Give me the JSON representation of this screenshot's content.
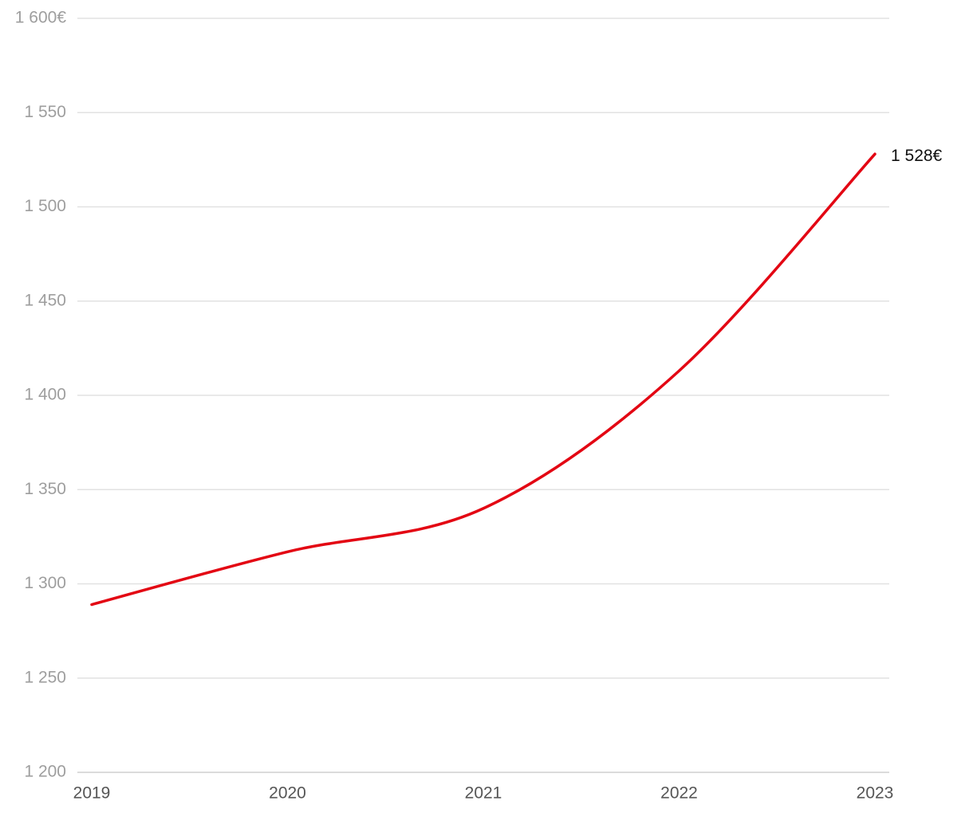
{
  "chart_data": {
    "type": "line",
    "x": [
      2019,
      2020,
      2021,
      2022,
      2023
    ],
    "values": [
      1289,
      1317,
      1340,
      1413,
      1528
    ],
    "value_labels": [
      null,
      null,
      null,
      null,
      "1 528€"
    ],
    "color": "#e30613",
    "xlim": [
      2019,
      2023
    ],
    "xticks": [
      2019,
      2020,
      2021,
      2022,
      2023
    ],
    "ylim": [
      1200,
      1600
    ],
    "yticks": [
      {
        "value": 1200,
        "label": "1 200"
      },
      {
        "value": 1250,
        "label": "1 250"
      },
      {
        "value": 1300,
        "label": "1 300"
      },
      {
        "value": 1350,
        "label": "1 350"
      },
      {
        "value": 1400,
        "label": "1 400"
      },
      {
        "value": 1450,
        "label": "1 450"
      },
      {
        "value": 1500,
        "label": "1 500"
      },
      {
        "value": 1550,
        "label": "1 550"
      },
      {
        "value": 1600,
        "label": "1 600€"
      }
    ],
    "grid": true
  }
}
